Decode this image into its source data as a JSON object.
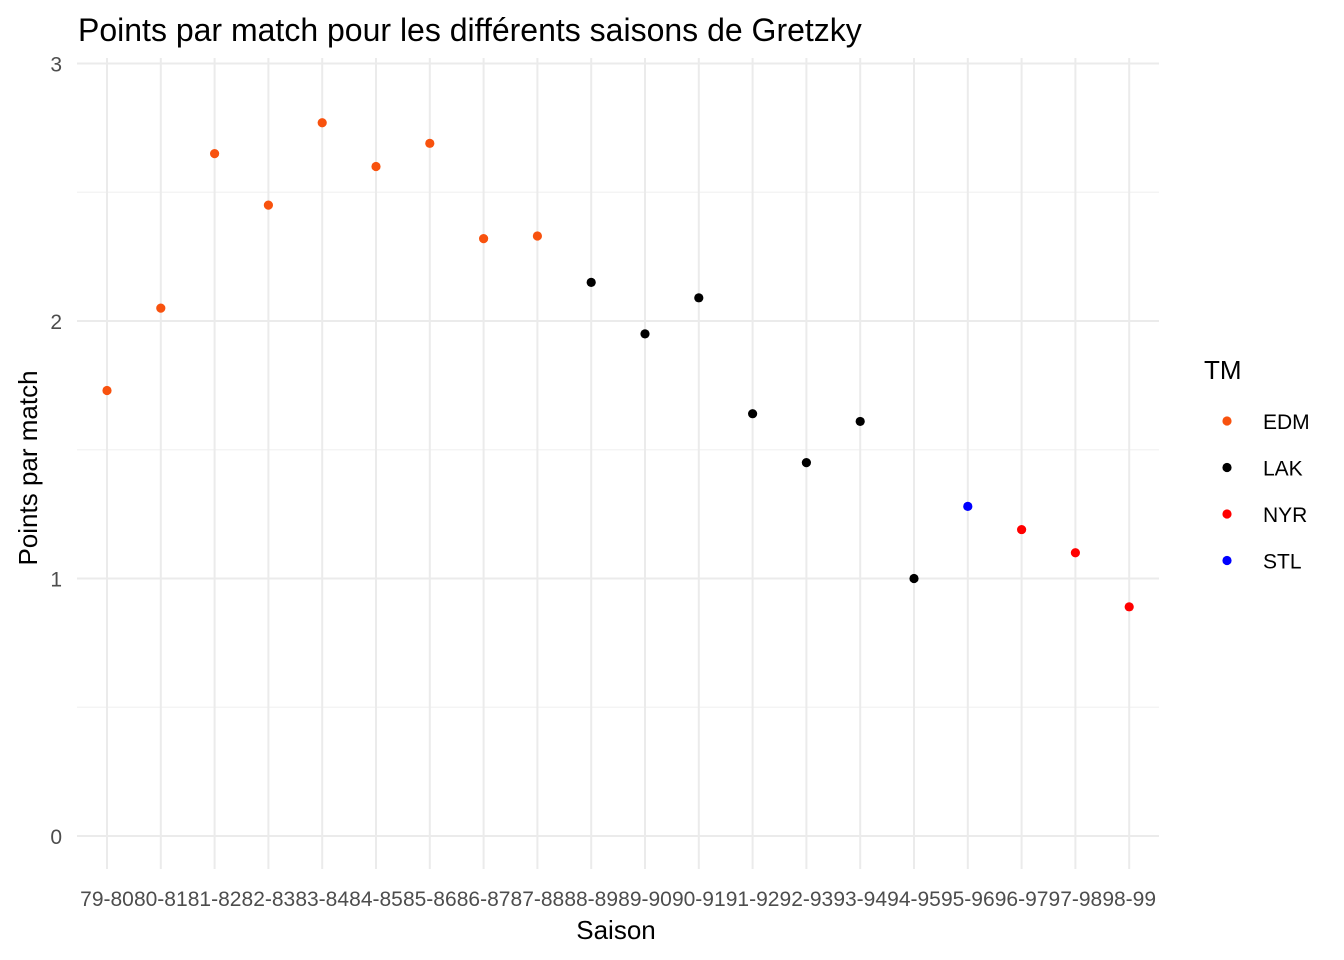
{
  "chart_data": {
    "type": "scatter",
    "title": "Points par match pour les différents saisons de Gretzky",
    "xlabel": "Saison",
    "ylabel": "Points par match",
    "categories": [
      "79-80",
      "80-81",
      "81-82",
      "82-83",
      "83-84",
      "84-85",
      "85-86",
      "86-87",
      "87-88",
      "88-89",
      "89-90",
      "90-91",
      "91-92",
      "92-93",
      "93-94",
      "94-95",
      "95-96",
      "96-97",
      "97-98",
      "98-99"
    ],
    "ylim": [
      0,
      3
    ],
    "yticks": [
      "0",
      "1",
      "2",
      "3"
    ],
    "grid": true,
    "legend": {
      "title": "TM",
      "placement": "right",
      "entries": [
        {
          "name": "EDM",
          "color": "#F8520E"
        },
        {
          "name": "LAK",
          "color": "#000000"
        },
        {
          "name": "NYR",
          "color": "#FF0000"
        },
        {
          "name": "STL",
          "color": "#0000FF"
        }
      ]
    },
    "points": [
      {
        "x": "79-80",
        "y": 1.73,
        "team": "EDM"
      },
      {
        "x": "80-81",
        "y": 2.05,
        "team": "EDM"
      },
      {
        "x": "81-82",
        "y": 2.65,
        "team": "EDM"
      },
      {
        "x": "82-83",
        "y": 2.45,
        "team": "EDM"
      },
      {
        "x": "83-84",
        "y": 2.77,
        "team": "EDM"
      },
      {
        "x": "84-85",
        "y": 2.6,
        "team": "EDM"
      },
      {
        "x": "85-86",
        "y": 2.69,
        "team": "EDM"
      },
      {
        "x": "86-87",
        "y": 2.32,
        "team": "EDM"
      },
      {
        "x": "87-88",
        "y": 2.33,
        "team": "EDM"
      },
      {
        "x": "88-89",
        "y": 2.15,
        "team": "LAK"
      },
      {
        "x": "89-90",
        "y": 1.95,
        "team": "LAK"
      },
      {
        "x": "90-91",
        "y": 2.09,
        "team": "LAK"
      },
      {
        "x": "91-92",
        "y": 1.64,
        "team": "LAK"
      },
      {
        "x": "92-93",
        "y": 1.45,
        "team": "LAK"
      },
      {
        "x": "93-94",
        "y": 1.61,
        "team": "LAK"
      },
      {
        "x": "94-95",
        "y": 1.0,
        "team": "LAK"
      },
      {
        "x": "95-96",
        "y": 1.28,
        "team": "STL"
      },
      {
        "x": "96-97",
        "y": 1.19,
        "team": "NYR"
      },
      {
        "x": "97-98",
        "y": 1.1,
        "team": "NYR"
      },
      {
        "x": "98-99",
        "y": 0.89,
        "team": "NYR"
      }
    ]
  }
}
